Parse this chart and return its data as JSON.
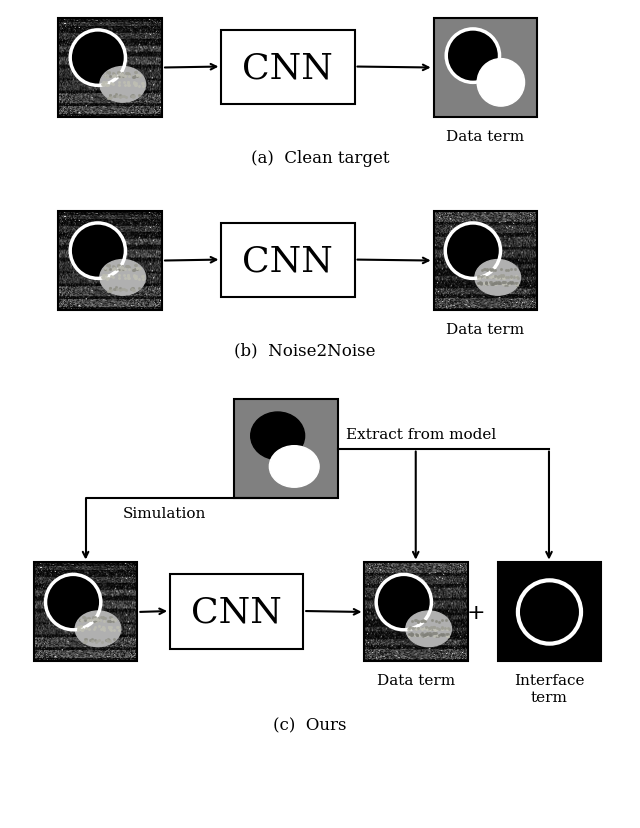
{
  "bg_color": "#ffffff",
  "panel_a_label": "(a)  Clean target",
  "panel_b_label": "(b)  Noise2Noise",
  "panel_c_label": "(c)  Ours",
  "cnn_label": "CNN",
  "data_term_label": "Data term",
  "interface_term_label": "Interface\nterm",
  "extract_label": "Extract from model",
  "simulation_label": "Simulation",
  "img_gray_bg": "#606060",
  "clean_out_bg": "#808080",
  "model_box_bg": "#808080"
}
